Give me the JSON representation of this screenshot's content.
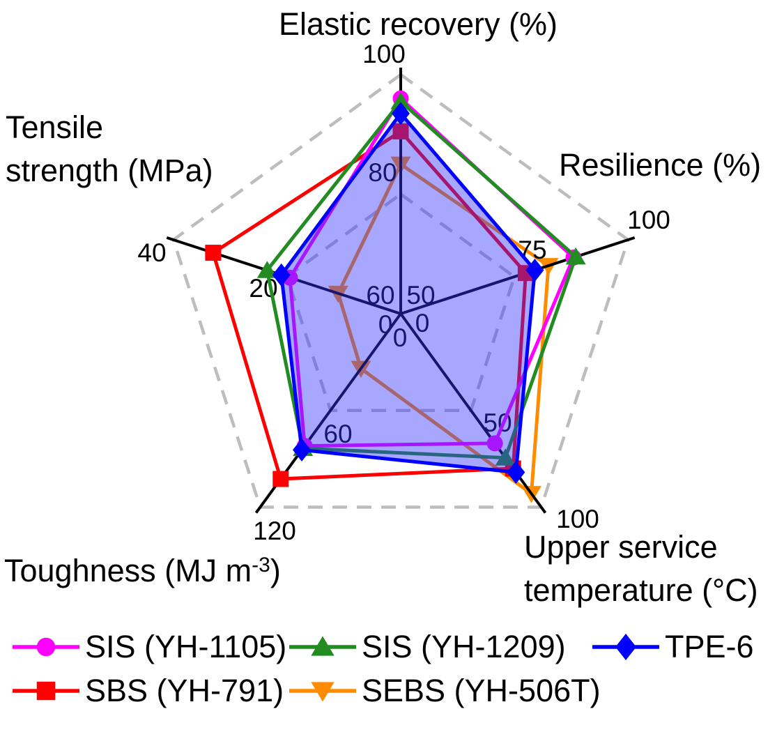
{
  "chart_data": {
    "type": "radar",
    "layout": {
      "grid": "pentagon, outer ring + mid ring, gray dashed",
      "legend_position": "bottom, 2 rows"
    },
    "axes": [
      {
        "title": "Elastic recovery (%)",
        "min": 60,
        "max": 100,
        "ticks": {
          "outer": "100",
          "mid": "80",
          "min": "60"
        }
      },
      {
        "title": "Resilience (%)",
        "min": 50,
        "max": 100,
        "ticks": {
          "outer": "100",
          "mid": "75",
          "min": "50"
        }
      },
      {
        "title": "Upper service temperature (°C)",
        "title_lines": [
          "Upper service",
          "temperature (°C)"
        ],
        "min": 0,
        "max": 100,
        "ticks": {
          "outer": "100",
          "mid": "50",
          "min": "0"
        }
      },
      {
        "title": "Toughness (MJ m⁻³)",
        "title_parts": {
          "main": "Toughness (MJ m",
          "sup": "-3",
          "end": ")"
        },
        "min": 0,
        "max": 120,
        "ticks": {
          "outer": "120",
          "mid": "60",
          "min": "0"
        }
      },
      {
        "title": "Tensile strength (MPa)",
        "title_lines": [
          "Tensile",
          "strength (MPa)"
        ],
        "min": 0,
        "max": 40,
        "ticks": {
          "outer": "40",
          "mid": "20",
          "min": "0"
        }
      }
    ],
    "axis_order_of_values": [
      "Elastic recovery (%)",
      "Resilience (%)",
      "Upper service temperature (°C)",
      "Toughness (MJ m⁻³)",
      "Tensile strength (MPa)"
    ],
    "series": [
      {
        "name": "SIS (YH-1105)",
        "color": "#FF00FF",
        "marker": "circle",
        "values": [
          96,
          88,
          67,
          82,
          19.5
        ]
      },
      {
        "name": "SIS (YH-1209)",
        "color": "#228B22",
        "marker": "triangle-up",
        "values": [
          95.5,
          88.5,
          74.5,
          83.5,
          23.5
        ]
      },
      {
        "name": "TPE-6",
        "color": "#0000FF",
        "marker": "diamond",
        "fill_color": "rgba(50,50,255,0.43)",
        "values": [
          93.5,
          79.5,
          82,
          84.5,
          21
        ]
      },
      {
        "name": "SBS (YH-791)",
        "color": "#FF0000",
        "marker": "square",
        "values": [
          90.5,
          77.5,
          80,
          102.5,
          33
        ]
      },
      {
        "name": "SEBS (YH-506T)",
        "color": "#FF8C00",
        "marker": "triangle-down",
        "values": [
          85,
          82.5,
          93,
          34,
          11
        ]
      }
    ],
    "colors": {
      "axis": "#000000",
      "grid": "#BDBDBD",
      "tick_text": "#000000",
      "background": "#FFFFFF"
    }
  }
}
